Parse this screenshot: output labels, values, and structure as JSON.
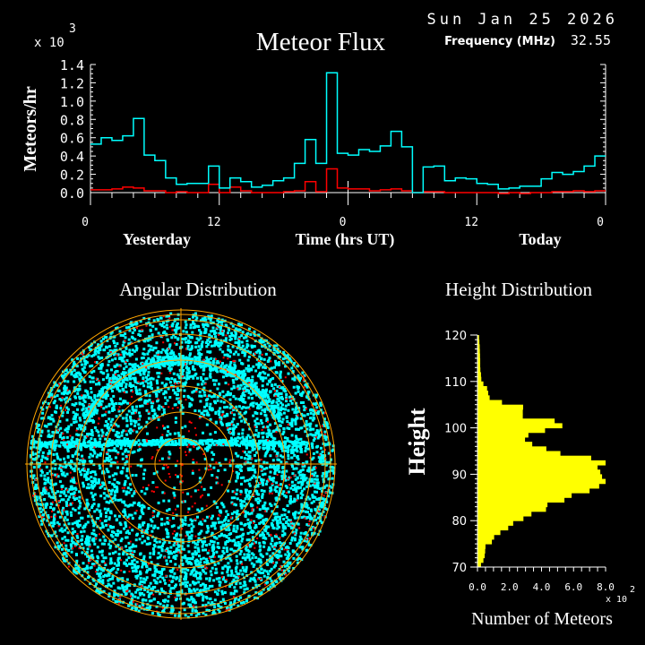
{
  "header": {
    "date": "Sun Jan 25 2026",
    "frequency_label": "Frequency (MHz)",
    "frequency_value": "32.55"
  },
  "colors": {
    "background": "#000000",
    "series_total": "#00ffff",
    "series_red": "#ff0000",
    "height_bars": "#ffff00",
    "polar_grid": "#ffa500",
    "axes": "#ffffff"
  },
  "chart_data": [
    {
      "type": "line",
      "style": "step",
      "title": "Meteor Flux",
      "ylabel": "Meteors/hr",
      "y_multiplier": "x 10",
      "y_multiplier_exp": "3",
      "xlabel": "Time (hrs UT)",
      "day_labels": [
        "Yesterday",
        "Today"
      ],
      "x_ticks": [
        "0",
        "12",
        "0",
        "12",
        "0"
      ],
      "x_tick_values": [
        0,
        12,
        24,
        36,
        48
      ],
      "xlim": [
        0,
        48
      ],
      "y_ticks": [
        "0.0",
        "0.2",
        "0.4",
        "0.6",
        "0.8",
        "1.0",
        "1.2",
        "1.4"
      ],
      "ylim": [
        0,
        1.4
      ],
      "grid": false,
      "series": [
        {
          "color": "#00ffff",
          "values": [
            0.53,
            0.6,
            0.57,
            0.62,
            0.81,
            0.41,
            0.35,
            0.16,
            0.09,
            0.1,
            0.1,
            0.29,
            0.05,
            0.16,
            0.12,
            0.06,
            0.08,
            0.13,
            0.16,
            0.32,
            0.58,
            0.32,
            1.31,
            0.43,
            0.41,
            0.47,
            0.45,
            0.51,
            0.67,
            0.5,
            0.0,
            0.28,
            0.29,
            0.13,
            0.16,
            0.15,
            0.1,
            0.09,
            0.04,
            0.05,
            0.07,
            0.07,
            0.15,
            0.22,
            0.2,
            0.23,
            0.29,
            0.4
          ]
        },
        {
          "color": "#ff0000",
          "values": [
            0.03,
            0.03,
            0.04,
            0.06,
            0.05,
            0.02,
            0.02,
            0.0,
            0.01,
            0.0,
            0.0,
            0.09,
            0.0,
            0.06,
            0.02,
            0.0,
            0.0,
            0.0,
            0.01,
            0.02,
            0.12,
            0.01,
            0.26,
            0.05,
            0.04,
            0.04,
            0.02,
            0.03,
            0.04,
            0.02,
            0.0,
            0.01,
            0.01,
            0.0,
            0.0,
            0.0,
            0.0,
            0.0,
            -0.01,
            0.0,
            -0.01,
            0.0,
            0.0,
            0.01,
            0.01,
            0.02,
            0.01,
            0.02
          ]
        }
      ]
    },
    {
      "type": "scatter",
      "projection": "polar",
      "title": "Angular Distribution",
      "series_colors": [
        "#00ffff",
        "#ff0000"
      ],
      "grid": true
    },
    {
      "type": "bar",
      "orientation": "horizontal",
      "title": "Height Distribution",
      "ylabel": "Height",
      "xlabel": "Number of Meteors",
      "x_multiplier": "x 10",
      "x_multiplier_exp": "2",
      "x_ticks": [
        "0.0",
        "2.0",
        "4.0",
        "6.0",
        "8.0"
      ],
      "xlim": [
        0,
        8
      ],
      "y_ticks": [
        "70",
        "80",
        "90",
        "100",
        "110",
        "120"
      ],
      "ylim": [
        70,
        120
      ],
      "bin_start": 70,
      "bin_width": 1,
      "values": [
        0.22,
        0.37,
        0.45,
        0.48,
        0.5,
        0.9,
        1.04,
        1.43,
        1.92,
        2.23,
        2.87,
        3.37,
        4.28,
        4.37,
        5.43,
        5.88,
        7.0,
        7.6,
        8.0,
        7.78,
        7.67,
        7.5,
        8.0,
        7.1,
        5.18,
        4.3,
        3.42,
        2.97,
        3.18,
        4.22,
        5.3,
        4.82,
        2.83,
        2.83,
        2.85,
        1.53,
        0.76,
        0.67,
        0.6,
        0.37,
        0.24,
        0.22,
        0.18,
        0.17,
        0.17,
        0.16,
        0.15,
        0.14,
        0.12,
        0.1
      ]
    }
  ]
}
